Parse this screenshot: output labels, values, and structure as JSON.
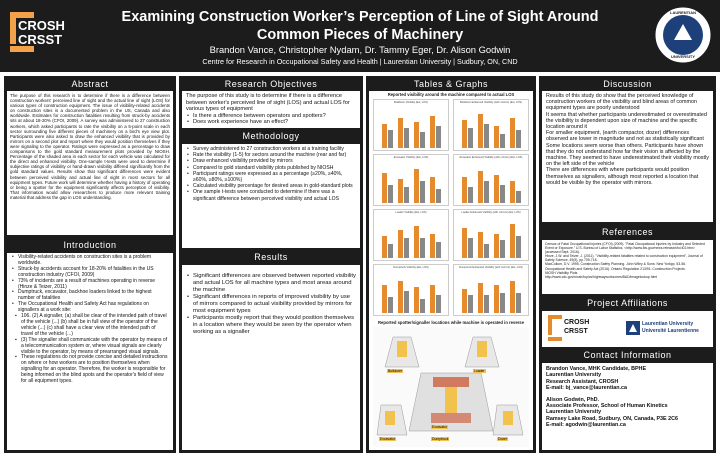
{
  "header": {
    "title_line1": "Examining Construction Worker’s Perception of Line of Sight Around",
    "title_line2": "Common Pieces of Machinery",
    "authors": "Brandon Vance, Christopher Nydam,  Dr. Tammy Eger, Dr. Alison Godwin",
    "affiliation": "Centre for Research in Occupational Safety and Health  |  Laurentian University  |  Sudbury, ON, CND",
    "logo_left_line1": "CROSH",
    "logo_left_line2": "CRSST",
    "logo_right_line1": "LAURENTIAN",
    "logo_right_line2": "UNIVERSITY"
  },
  "abstract": {
    "heading": "Abstract",
    "text": "The purpose of this research is to determine if there is a difference between construction workers' perceived line of sight and the actual line of sight (LOS) for various types of construction equipment. The issue of visibility-related accidents on construction sites is a documented problem in the US, Canada and also worldwide. Estimates for construction fatalities resulting from struck-by accidents sits at about 18-20% (CFOI, 2009). A survey was administered to 27 construction workers, which asked participants to rate the visibility on a 5-point scale in each sector surrounding five different pieces of machinery on a bird's eye view plot. Participants were also asked to draw the enhanced visibility that is provided by mirrors on a second plot and report where they would position themselves if they were signaling to the operator. Ratings were expressed as a percentage to draw comparisons to the gold standard measurement plots provided by NIOSH. Percentage of the shaded area in each sector for each vehicle was calculated for the direct and enhanced visibility. One-sample t-tests were used to determine if subjective ratings of visibility or hand-drawn visibility differed significantly from the gold standard values. Results show that significant differences were evident between perceived visibility and actual line of sight in most sectors for all equipment types. Future work will determine whether having a history of operating or being a spotter for the equipment significantly affects perception of visibility. That information would allow researchers to produce more relevant training material that address the gap in LOS understanding."
  },
  "introduction": {
    "heading": "Introduction",
    "bullets": [
      "Visibility-related accidents on construction sites is a problem worldwide.",
      "Struck-by accidents account for 18-20% of fatalities in the US construction industry (CFOI, 2009)",
      "73% of incidents are a result of machines operating in reverse (Hinze & Teizer, 2011)",
      "Dumptruck, excavator, backhoe loaders linked to the highest number of fatalities",
      "The Occupational Health and Safety Act has regulations on signallers at a work site:"
    ],
    "sub_bullets": [
      "106. (2) A signaller, (a) shall be clear of the intended path of travel of the vehicle (...) (b) shall be in full view of the operator of the vehicle (...) (c) shall have a clear view of the intended path of travel of the vehicle (...)",
      "(3) The signaller shall communicate with the operator by means of a telecommunication system or, where visual signals are clearly visible to the operator, by means of prearranged visual signals.",
      "These regulations do not provide concise and detailed instructions on where or how workers are to position themselves when signalling for an operator. Therefore, the worker is responsible for being informed on the blind spots and the operator's field of view for all equipment types."
    ]
  },
  "objectives": {
    "heading": "Research Objectives",
    "intro": "The purpose of this study is to determine if there is a difference between worker's perceived line of sight (LOS) and actual LOS for various types of equipment",
    "bullets": [
      "Is there a difference between operators and spotters?",
      "Does work experience have an effect?"
    ]
  },
  "methodology": {
    "heading": "Methodology",
    "bullets": [
      "Survey administered to 27 construction workers at a training facility",
      "Rate the visibility (1-5) for sectors around the machine (rear and far)",
      "Draw enhanced visibility provided by mirrors",
      "Compared to gold standard visibility plots published by NIOSH",
      "Participant ratings were expressed as a percentage (≥20%, ≥40%, ≥60%, ≥80%, ≥100%)",
      "Calculated visibility percentage for desired areas in gold-standard plots",
      "One sample t-tests were conducted to determine if there was a significant difference between perceived visibility and actual LOS"
    ]
  },
  "results": {
    "heading": "Results",
    "bullets": [
      "Significant differences are observed between reported visibility and actual LOS for all machine types and most areas around the machine",
      "Significant differences in reports of improved visibility by use of mirrors compared to actual visibility provided by mirrors for most equipment types",
      "Participants mostly report that they would position themselves in a location where they would be seen by the operator when working as a signaller"
    ]
  },
  "tables": {
    "heading": "Tables & Graphs",
    "top_caption": "Reported visibility around the machine compared to actual LOS",
    "mini_captions": [
      "Bulldozer Visibility (Est, LOS)",
      "Bulldozer Enhanced Visibility (with mirrors) (Est, LOS)",
      "Excavator Visibility (Est, LOS)",
      "Excavator Enhanced Visibility (with mirrors) (Est, LOS)",
      "Loader Visibility (Est, LOS)",
      "Loader Enhanced Visibility (with mirrors) (Est, LOS)",
      "Dumptruck Visibility (Est, LOS)",
      "Dumptruck Enhanced Visibility (with mirrors) (Est, LOS)"
    ],
    "bottom_caption": "Reported spotter/signaller locations while machine is operated in reverse",
    "machine_labels": [
      "Bulldozer",
      "Loader",
      "Excavator",
      "Dumptruck",
      "Excavator",
      "Dozer"
    ]
  },
  "discussion": {
    "heading": "Discussion",
    "p1": "Results of this study do show that the perceived knowledge of construction workers of the visibility and blind areas of common equipment types are poorly understood",
    "p2": "It seems that whether participants underestimated or overestimated the visibility is dependent upon size of machine and the specific location around it",
    "p3": "For smaller equipment, (earth compactor, dozer) differences observed are lower in magnitude and not as statistically significant",
    "p4": "Some locations seem worse than others. Participants have shown that they do not understand how far their vision is affected by the machine. They seemed to have underestimated their visibility mostly on the left side of the vehicle",
    "p5": "There are differences with where participants would position themselves as signallers, although most reported a location that would be visible by the operator with mirrors."
  },
  "references": {
    "heading": "References",
    "items": [
      "Census of Fatal Occupational Injuries (CFOI) (2009). \"Fatal Occupational Injuries by Industry and Selected Event or Exposure.\" U.S. Bureau of Labor Statistics, <http://www.bls.gov/news.release/cfoi.t02.htm> (accessed Sept. 2016).",
      "Hinze, J.W. and Teizer, J. (2011). \"Visibility-related fatalities related to construction equipment\", Journal of Safety Science, 49(5), pp.709-718.",
      "MacCollum, D.V. 1995. Construction Safety Planning. John Wiley & Sons: New Yorkpp. 53-56.",
      "Occupational Health and Safety Act (2016). Ontario Regulation 213/91: Construction Projects.",
      "NIOSH Visibility Plots",
      "http://www.cdc.gov/niosh/topics/highwayworkzones/BAD/imagelookup.html"
    ]
  },
  "affiliations": {
    "heading": "Project Affiliations",
    "crosh_line1": "CROSH",
    "crosh_line2": "CRSST",
    "lu_line1": "Laurentian University",
    "lu_line2": "Université Laurentienne"
  },
  "contact": {
    "heading": "Contact Information",
    "lines1": [
      "Brandon Vance, MHK Candidate,  BPHE",
      "Laurentian University",
      "Research Assistant, CROSH",
      "E-mail: bj_vance@laurentian.ca"
    ],
    "lines2": [
      "Alison Godwin, PhD.",
      "Associate Professor, School of Human Kinetics",
      "Laurentian University",
      "Ramsey Lake Road, Sudbury, ON, Canada, P3E 2C6",
      "E-mail: agodwin@laurentian.ca"
    ]
  },
  "colors": {
    "dark": "#1c1c1c",
    "accent": "#e58a2d",
    "gray": "#bdbdbd"
  }
}
